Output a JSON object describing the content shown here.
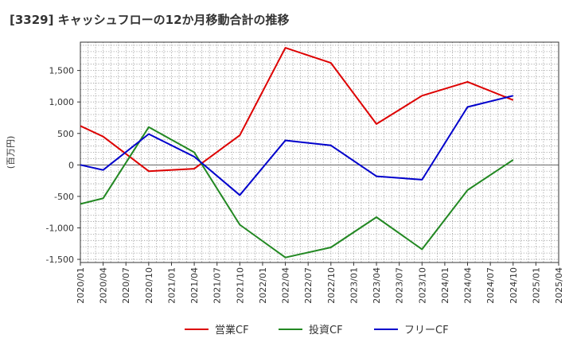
{
  "chart_data": {
    "type": "line",
    "title": "[3329]  キャッシュフローの12か月移動合計の推移",
    "ylabel": "(百万円)",
    "xlabel": "",
    "ylim": [
      -1550,
      1950
    ],
    "yticks": [
      -1500,
      -1000,
      -500,
      0,
      500,
      1000,
      1500
    ],
    "ytick_labels": [
      "-1,500",
      "-1,000",
      "-500",
      "0",
      "500",
      "1,000",
      "1,500"
    ],
    "categories": [
      "2020/01",
      "2020/04",
      "2020/07",
      "2020/10",
      "2021/01",
      "2021/04",
      "2021/07",
      "2021/10",
      "2022/01",
      "2022/04",
      "2022/07",
      "2022/10",
      "2023/01",
      "2023/04",
      "2023/07",
      "2023/10",
      "2024/01",
      "2024/04",
      "2024/07",
      "2024/10",
      "2025/01",
      "2025/04"
    ],
    "grid": true,
    "legend_position": "bottom",
    "series": [
      {
        "name": "営業CF",
        "color": "#dd0000",
        "points": [
          [
            0,
            620
          ],
          [
            1,
            450
          ],
          [
            3,
            -100
          ],
          [
            5,
            -60
          ],
          [
            7,
            470
          ],
          [
            9,
            1860
          ],
          [
            11,
            1620
          ],
          [
            13,
            650
          ],
          [
            15,
            1100
          ],
          [
            17,
            1320
          ],
          [
            19,
            1030
          ]
        ]
      },
      {
        "name": "投資CF",
        "color": "#228822",
        "points": [
          [
            0,
            -620
          ],
          [
            1,
            -530
          ],
          [
            3,
            600
          ],
          [
            5,
            200
          ],
          [
            7,
            -950
          ],
          [
            9,
            -1470
          ],
          [
            11,
            -1310
          ],
          [
            13,
            -830
          ],
          [
            15,
            -1340
          ],
          [
            17,
            -400
          ],
          [
            19,
            80
          ]
        ]
      },
      {
        "name": "フリーCF",
        "color": "#0000cc",
        "points": [
          [
            0,
            0
          ],
          [
            1,
            -80
          ],
          [
            3,
            490
          ],
          [
            5,
            130
          ],
          [
            7,
            -480
          ],
          [
            9,
            390
          ],
          [
            11,
            310
          ],
          [
            13,
            -180
          ],
          [
            15,
            -235
          ],
          [
            17,
            920
          ],
          [
            19,
            1100
          ]
        ]
      }
    ]
  }
}
